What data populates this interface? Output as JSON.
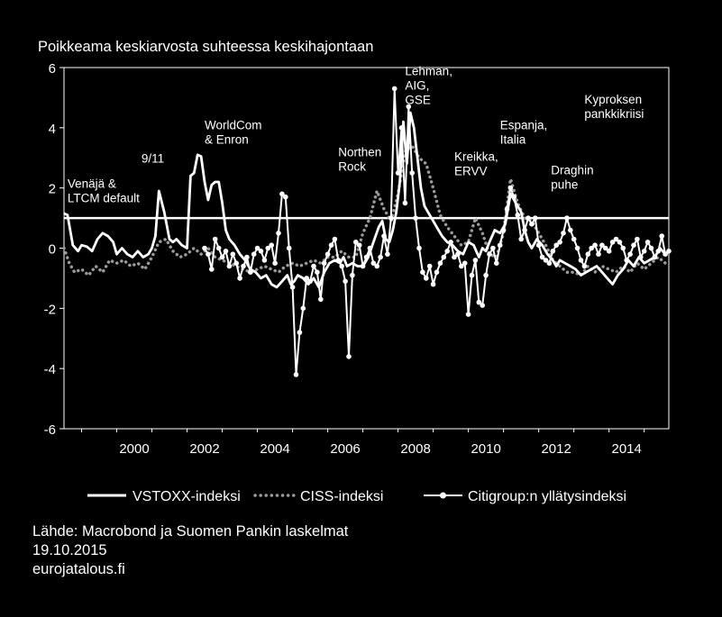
{
  "chart_data": {
    "type": "line",
    "title": "Poikkeama keskiarvosta suhteessa keskihajontaan",
    "x_range": [
      1998.5,
      2015.7
    ],
    "ylim": [
      -6,
      6
    ],
    "y_ticks": [
      6,
      4,
      2,
      0,
      -2,
      -4,
      -6
    ],
    "x_ticks": [
      2000,
      2002,
      2004,
      2006,
      2008,
      2010,
      2012,
      2014
    ],
    "threshold": 1,
    "annotations": [
      {
        "lines": [
          "Venäjä &",
          "LTCM default"
        ],
        "x": 1998.6,
        "y": 2.0
      },
      {
        "lines": [
          "9/11"
        ],
        "x": 2000.7,
        "y": 2.85
      },
      {
        "lines": [
          "WorldCom",
          "& Enron"
        ],
        "x": 2002.5,
        "y": 3.95
      },
      {
        "lines": [
          "Northen",
          "Rock"
        ],
        "x": 2006.3,
        "y": 3.05
      },
      {
        "lines": [
          "Lehman,",
          "AIG,",
          "GSE"
        ],
        "x": 2008.2,
        "y": 5.75
      },
      {
        "lines": [
          "Kreikka,",
          "ERVV"
        ],
        "x": 2009.6,
        "y": 2.9
      },
      {
        "lines": [
          "Espanja,",
          "Italia"
        ],
        "x": 2010.9,
        "y": 3.95
      },
      {
        "lines": [
          "Draghin",
          "puhe"
        ],
        "x": 2012.35,
        "y": 2.45
      },
      {
        "lines": [
          "Kyproksen",
          "pankkikriisi"
        ],
        "x": 2013.3,
        "y": 4.8
      }
    ],
    "series": [
      {
        "name": "VSTOXX-indeksi",
        "style": "solid",
        "x": [
          1998.5,
          1998.6,
          1998.75,
          1998.9,
          1999.0,
          1999.15,
          1999.3,
          1999.45,
          1999.6,
          1999.75,
          1999.9,
          2000.0,
          2000.15,
          2000.3,
          2000.45,
          2000.6,
          2000.75,
          2000.9,
          2001.0,
          2001.1,
          2001.2,
          2001.35,
          2001.5,
          2001.6,
          2001.7,
          2001.85,
          2002.0,
          2002.1,
          2002.2,
          2002.3,
          2002.4,
          2002.5,
          2002.6,
          2002.7,
          2002.8,
          2002.9,
          2003.0,
          2003.1,
          2003.2,
          2003.35,
          2003.5,
          2003.65,
          2003.8,
          2003.95,
          2004.1,
          2004.25,
          2004.4,
          2004.55,
          2004.7,
          2004.85,
          2004.95,
          2005.05,
          2005.15,
          2005.3,
          2005.45,
          2005.6,
          2005.75,
          2005.9,
          2006.05,
          2006.2,
          2006.35,
          2006.45,
          2006.55,
          2006.7,
          2006.85,
          2007.0,
          2007.15,
          2007.3,
          2007.45,
          2007.55,
          2007.65,
          2007.75,
          2007.85,
          2007.95,
          2008.05,
          2008.15,
          2008.25,
          2008.35,
          2008.45,
          2008.55,
          2008.65,
          2008.75,
          2008.85,
          2008.95,
          2009.1,
          2009.25,
          2009.4,
          2009.55,
          2009.7,
          2009.85,
          2010.0,
          2010.15,
          2010.3,
          2010.4,
          2010.5,
          2010.6,
          2010.75,
          2010.9,
          2011.05,
          2011.2,
          2011.35,
          2011.5,
          2011.6,
          2011.7,
          2011.8,
          2011.95,
          2012.1,
          2012.25,
          2012.4,
          2012.5,
          2012.6,
          2012.75,
          2012.9,
          2013.05,
          2013.2,
          2013.35,
          2013.5,
          2013.65,
          2013.8,
          2013.95,
          2014.1,
          2014.25,
          2014.4,
          2014.55,
          2014.7,
          2014.85,
          2015.0,
          2015.15,
          2015.3,
          2015.45,
          2015.6,
          2015.7
        ],
        "values": [
          1.15,
          1.1,
          0.1,
          -0.1,
          0.1,
          0.05,
          -0.1,
          0.3,
          0.5,
          0.4,
          0.2,
          -0.2,
          0.0,
          -0.2,
          -0.3,
          -0.1,
          -0.3,
          -0.2,
          0.0,
          0.4,
          1.9,
          1.2,
          0.3,
          0.2,
          0.3,
          0.1,
          0.0,
          2.4,
          2.5,
          3.1,
          3.05,
          2.2,
          1.6,
          2.1,
          2.2,
          2.2,
          1.5,
          0.6,
          0.3,
          0.1,
          -0.2,
          -0.4,
          -0.7,
          -0.8,
          -1.0,
          -0.9,
          -1.2,
          -1.3,
          -1.1,
          -0.9,
          -1.2,
          -1.1,
          -0.9,
          -1.0,
          -1.2,
          -1.0,
          -1.3,
          -0.8,
          -0.5,
          -0.4,
          -0.5,
          -0.3,
          -0.6,
          -0.5,
          -0.6,
          -0.6,
          -0.3,
          0.2,
          0.7,
          0.9,
          0.3,
          0.2,
          0.6,
          1.2,
          2.2,
          4.2,
          2.8,
          4.5,
          4.0,
          3.0,
          2.0,
          1.4,
          1.2,
          1.0,
          0.7,
          0.4,
          0.2,
          0.1,
          -0.1,
          -0.2,
          0.2,
          0.1,
          -0.3,
          0.0,
          -0.1,
          0.2,
          0.6,
          0.5,
          0.8,
          1.8,
          1.5,
          1.2,
          0.6,
          0.2,
          0.0,
          0.3,
          0.1,
          -0.2,
          -0.4,
          -0.6,
          -0.4,
          -0.5,
          -0.6,
          -0.7,
          -0.9,
          -0.8,
          -0.7,
          -0.6,
          -0.8,
          -1.0,
          -1.2,
          -0.9,
          -0.7,
          -0.4,
          -0.6,
          -0.3,
          -0.5,
          -0.4,
          -0.3,
          0.0,
          -0.2,
          -0.1
        ]
      },
      {
        "name": "CISS-indeksi",
        "style": "dotted",
        "x": [
          1998.5,
          1998.65,
          1998.8,
          1999.0,
          1999.2,
          1999.4,
          1999.6,
          1999.8,
          2000.0,
          2000.2,
          2000.4,
          2000.6,
          2000.8,
          2001.0,
          2001.2,
          2001.4,
          2001.6,
          2001.8,
          2002.0,
          2002.2,
          2002.4,
          2002.6,
          2002.8,
          2003.0,
          2003.2,
          2003.4,
          2003.6,
          2003.8,
          2004.0,
          2004.2,
          2004.4,
          2004.6,
          2004.8,
          2005.0,
          2005.2,
          2005.4,
          2005.6,
          2005.8,
          2006.0,
          2006.2,
          2006.4,
          2006.6,
          2006.8,
          2007.0,
          2007.2,
          2007.4,
          2007.6,
          2007.8,
          2008.0,
          2008.2,
          2008.4,
          2008.6,
          2008.8,
          2009.0,
          2009.2,
          2009.4,
          2009.6,
          2009.8,
          2010.0,
          2010.2,
          2010.4,
          2010.6,
          2010.8,
          2011.0,
          2011.2,
          2011.4,
          2011.6,
          2011.8,
          2012.0,
          2012.2,
          2012.4,
          2012.6,
          2012.8,
          2013.0,
          2013.2,
          2013.4,
          2013.6,
          2013.8,
          2014.0,
          2014.2,
          2014.4,
          2014.6,
          2014.8,
          2015.0,
          2015.2,
          2015.4,
          2015.7
        ],
        "values": [
          0.0,
          -0.5,
          -0.8,
          -0.7,
          -0.9,
          -0.6,
          -0.8,
          -0.4,
          -0.5,
          -0.4,
          -0.6,
          -0.5,
          -0.7,
          -0.3,
          0.2,
          0.3,
          -0.1,
          -0.3,
          -0.2,
          0.0,
          -0.2,
          0.0,
          -0.3,
          -0.4,
          -0.5,
          -0.6,
          -0.7,
          -0.8,
          -0.7,
          -0.6,
          -0.7,
          -0.8,
          -0.6,
          -0.5,
          -0.6,
          -0.5,
          -0.4,
          -0.5,
          -0.3,
          -0.3,
          -0.1,
          -0.3,
          -0.3,
          0.5,
          1.0,
          1.9,
          1.3,
          0.9,
          1.8,
          3.2,
          3.4,
          3.0,
          2.8,
          2.0,
          1.1,
          0.7,
          0.4,
          0.1,
          0.2,
          1.0,
          0.5,
          -0.2,
          -0.3,
          0.5,
          2.3,
          1.5,
          1.0,
          0.9,
          0.5,
          0.1,
          -0.4,
          -0.6,
          -0.8,
          -0.8,
          -0.9,
          -0.6,
          -0.8,
          -0.6,
          -0.7,
          -0.8,
          -0.6,
          -0.8,
          -0.5,
          -0.7,
          -0.5,
          -0.3,
          -0.6
        ]
      },
      {
        "name": "Citigroup:n yllätysindeksi",
        "style": "solid-markers",
        "x": [
          2002.0,
          2002.1,
          2002.2,
          2002.3,
          2002.4,
          2002.5,
          2002.6,
          2002.7,
          2002.8,
          2002.9,
          2003.0,
          2003.1,
          2003.2,
          2003.3,
          2003.4,
          2003.5,
          2003.6,
          2003.7,
          2003.8,
          2003.9,
          2004.0,
          2004.1,
          2004.2,
          2004.3,
          2004.4,
          2004.5,
          2004.6,
          2004.7,
          2004.8,
          2004.9,
          2005.0,
          2005.1,
          2005.2,
          2005.3,
          2005.4,
          2005.5,
          2005.6,
          2005.7,
          2005.8,
          2005.9,
          2006.0,
          2006.1,
          2006.2,
          2006.3,
          2006.4,
          2006.5,
          2006.6,
          2006.7,
          2006.8,
          2006.9,
          2007.0,
          2007.1,
          2007.2,
          2007.3,
          2007.4,
          2007.5,
          2007.6,
          2007.7,
          2007.8,
          2007.9,
          2008.0,
          2008.1,
          2008.2,
          2008.3,
          2008.4,
          2008.5,
          2008.6,
          2008.7,
          2008.8,
          2008.9,
          2009.0,
          2009.1,
          2009.2,
          2009.3,
          2009.4,
          2009.5,
          2009.6,
          2009.7,
          2009.8,
          2009.9,
          2010.0,
          2010.1,
          2010.2,
          2010.3,
          2010.4,
          2010.5,
          2010.6,
          2010.7,
          2010.8,
          2010.9,
          2011.0,
          2011.1,
          2011.2,
          2011.3,
          2011.4,
          2011.5,
          2011.6,
          2011.7,
          2011.8,
          2011.9,
          2012.0,
          2012.1,
          2012.2,
          2012.3,
          2012.4,
          2012.5,
          2012.6,
          2012.7,
          2012.8,
          2012.9,
          2013.0,
          2013.1,
          2013.2,
          2013.3,
          2013.4,
          2013.5,
          2013.6,
          2013.7,
          2013.8,
          2013.9,
          2014.0,
          2014.1,
          2014.2,
          2014.3,
          2014.4,
          2014.5,
          2014.6,
          2014.7,
          2014.8,
          2014.9,
          2015.0,
          2015.1,
          2015.2,
          2015.3,
          2015.4,
          2015.5,
          2015.6,
          2015.7
        ],
        "values": [
          null,
          null,
          null,
          null,
          null,
          0.0,
          -0.2,
          -0.7,
          0.3,
          0.0,
          -0.3,
          -0.1,
          -0.6,
          -0.2,
          -0.5,
          -1.0,
          -0.6,
          -0.3,
          -0.8,
          -0.2,
          0.0,
          -0.1,
          -0.4,
          0.0,
          0.1,
          -0.5,
          0.5,
          1.8,
          1.7,
          0.0,
          -1.3,
          -4.2,
          -2.8,
          -2.0,
          -1.0,
          -1.1,
          -0.6,
          -0.8,
          -1.7,
          -0.5,
          -0.2,
          0.1,
          0.3,
          -0.4,
          -0.6,
          -1.1,
          -3.6,
          -0.9,
          0.2,
          0.1,
          -0.6,
          -0.3,
          0.0,
          -0.5,
          -0.6,
          -0.3,
          0.4,
          -0.2,
          1.0,
          5.3,
          2.5,
          4.0,
          1.5,
          4.7,
          2.5,
          1.0,
          0.0,
          -0.8,
          -1.0,
          -0.6,
          -1.2,
          -0.8,
          -0.5,
          -0.3,
          -0.1,
          0.2,
          -0.3,
          -0.2,
          -0.6,
          -0.5,
          -2.2,
          -0.9,
          -0.4,
          -1.8,
          -1.9,
          -0.9,
          -0.2,
          0.0,
          -0.5,
          0.1,
          0.6,
          1.3,
          2.0,
          1.7,
          1.1,
          0.3,
          0.6,
          1.0,
          0.8,
          1.0,
          0.1,
          -0.3,
          -0.4,
          -0.5,
          -0.1,
          0.1,
          0.2,
          0.5,
          1.0,
          0.6,
          0.3,
          0.0,
          -0.4,
          -0.6,
          -0.2,
          0.0,
          0.1,
          -0.2,
          0.1,
          0.0,
          -0.1,
          0.2,
          0.3,
          0.2,
          0.0,
          -0.4,
          -0.2,
          0.1,
          0.3,
          -0.3,
          -0.1,
          0.2,
          0.0,
          -0.3,
          -0.1,
          0.4,
          -0.2,
          -0.1
        ]
      }
    ]
  },
  "legend": {
    "vstoxx": "VSTOXX-indeksi",
    "ciss": "CISS-indeksi",
    "citi": "Citigroup:n yllätysindeksi"
  },
  "source": {
    "line1": "Lähde: Macrobond ja Suomen Pankin laskelmat",
    "line2": "19.10.2015",
    "line3": "eurojatalous.fi"
  },
  "colors": {
    "background": "#000000",
    "lines": "#ffffff",
    "ciss": "#9a9a9a"
  }
}
